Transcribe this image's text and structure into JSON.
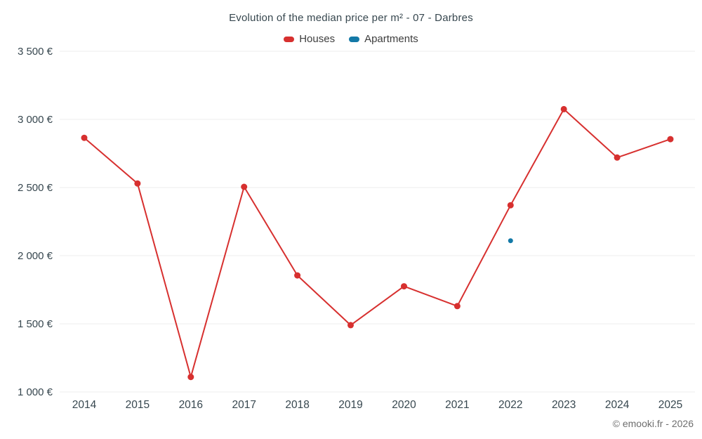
{
  "chart_data": {
    "type": "line",
    "title": "Evolution of the median price per m² - 07 - Darbres",
    "categories": [
      "2014",
      "2015",
      "2016",
      "2017",
      "2018",
      "2019",
      "2020",
      "2021",
      "2022",
      "2023",
      "2024",
      "2025"
    ],
    "series": [
      {
        "name": "Houses",
        "color": "#d7302f",
        "values": [
          2865,
          2530,
          1110,
          2505,
          1855,
          1490,
          1775,
          1630,
          2370,
          3075,
          2720,
          2855
        ]
      },
      {
        "name": "Apartments",
        "color": "#1379a7",
        "values": [
          null,
          null,
          null,
          null,
          null,
          null,
          null,
          null,
          2110,
          null,
          null,
          null
        ]
      }
    ],
    "ylim": [
      1000,
      3500
    ],
    "y_ticks": [
      {
        "value": 1000,
        "label": "1 000 €"
      },
      {
        "value": 1500,
        "label": "1 500 €"
      },
      {
        "value": 2000,
        "label": "2 000 €"
      },
      {
        "value": 2500,
        "label": "2 500 €"
      },
      {
        "value": 3000,
        "label": "3 000 €"
      },
      {
        "value": 3500,
        "label": "3 500 €"
      }
    ],
    "grid": "horizontal",
    "legend_position": "top",
    "xlabel": "",
    "ylabel": ""
  },
  "footer": {
    "copyright": "© emooki.fr - 2026"
  }
}
